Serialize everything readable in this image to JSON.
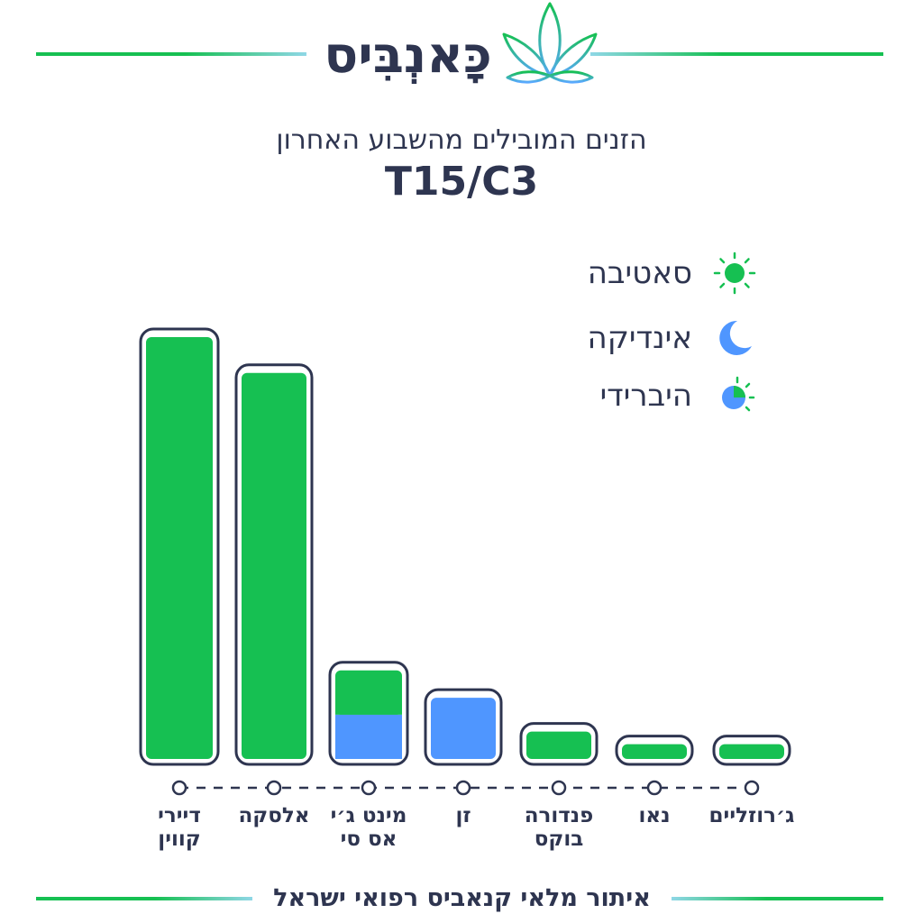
{
  "brand": {
    "logo_text": "כָּאנְבִּיס"
  },
  "header": {
    "subtitle": "הזנים המובילים מהשבוע האחרון",
    "title": "T15/C3"
  },
  "legend": [
    {
      "label": "סאטיבה",
      "icon": "sun-icon",
      "color": "#16c052"
    },
    {
      "label": "אינדיקה",
      "icon": "moon-icon",
      "color": "#4f96ff"
    },
    {
      "label": "היברידי",
      "icon": "hybrid-icon",
      "color": "#16c052"
    }
  ],
  "colors": {
    "sativa": "#16c052",
    "indica": "#4f96ff",
    "text": "#2e3550"
  },
  "chart_data": {
    "type": "bar",
    "categories": [
      "דיירי\nקווין",
      "אלסקה",
      "מינט ג׳י\nאס סי",
      "זן",
      "פנדורה\nבוקס",
      "נאו",
      "ג׳רוזליים"
    ],
    "series": [
      {
        "name": "סאטיבה",
        "values": [
          100,
          91.5,
          10.5,
          0,
          6.5,
          3.5,
          3.5
        ]
      },
      {
        "name": "אינדיקה",
        "values": [
          0,
          0,
          10.5,
          14.5,
          0,
          0,
          0
        ]
      }
    ],
    "stacked": true,
    "ylim": [
      0,
      100
    ],
    "axes_visible": false,
    "grid": false,
    "legend_position": "top-right"
  },
  "footer": {
    "text": "איתור מלאי קנאביס רפואי ישראל"
  }
}
